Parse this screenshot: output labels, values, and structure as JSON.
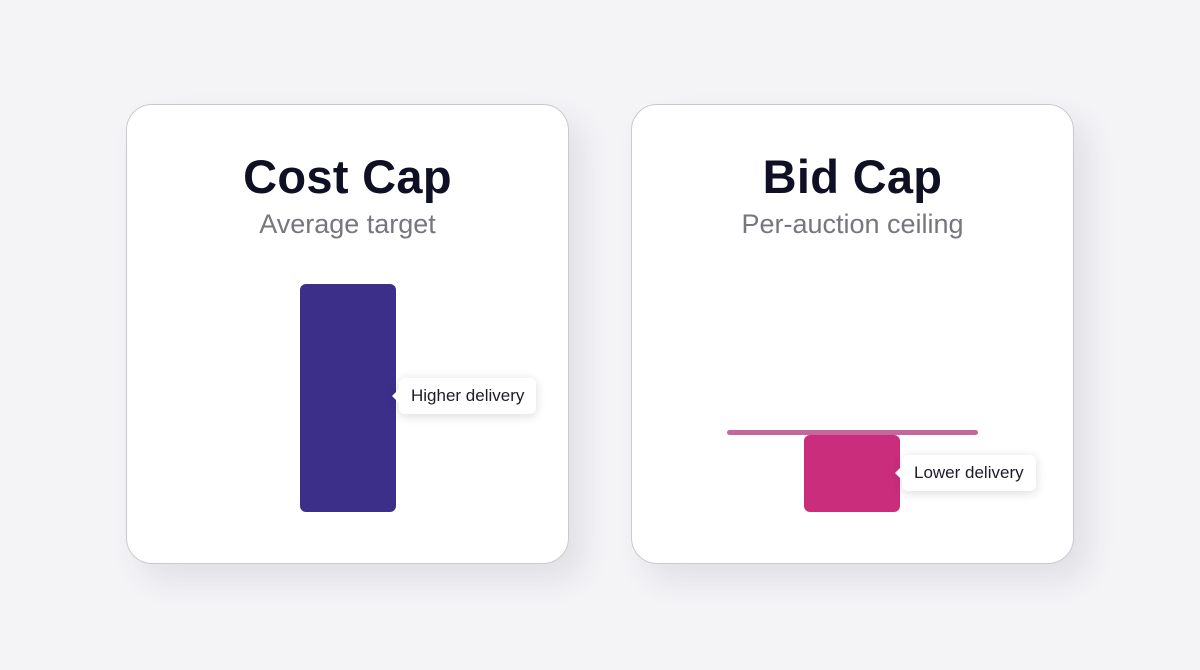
{
  "cards": [
    {
      "title": "Cost Cap",
      "subtitle": "Average target",
      "bar_label": "Higher delivery",
      "bar_color": "#3c2f8a"
    },
    {
      "title": "Bid Cap",
      "subtitle": "Per-auction ceiling",
      "bar_label": "Lower delivery",
      "bar_color": "#c92d7c",
      "ceiling_color": "#c4679a"
    }
  ]
}
